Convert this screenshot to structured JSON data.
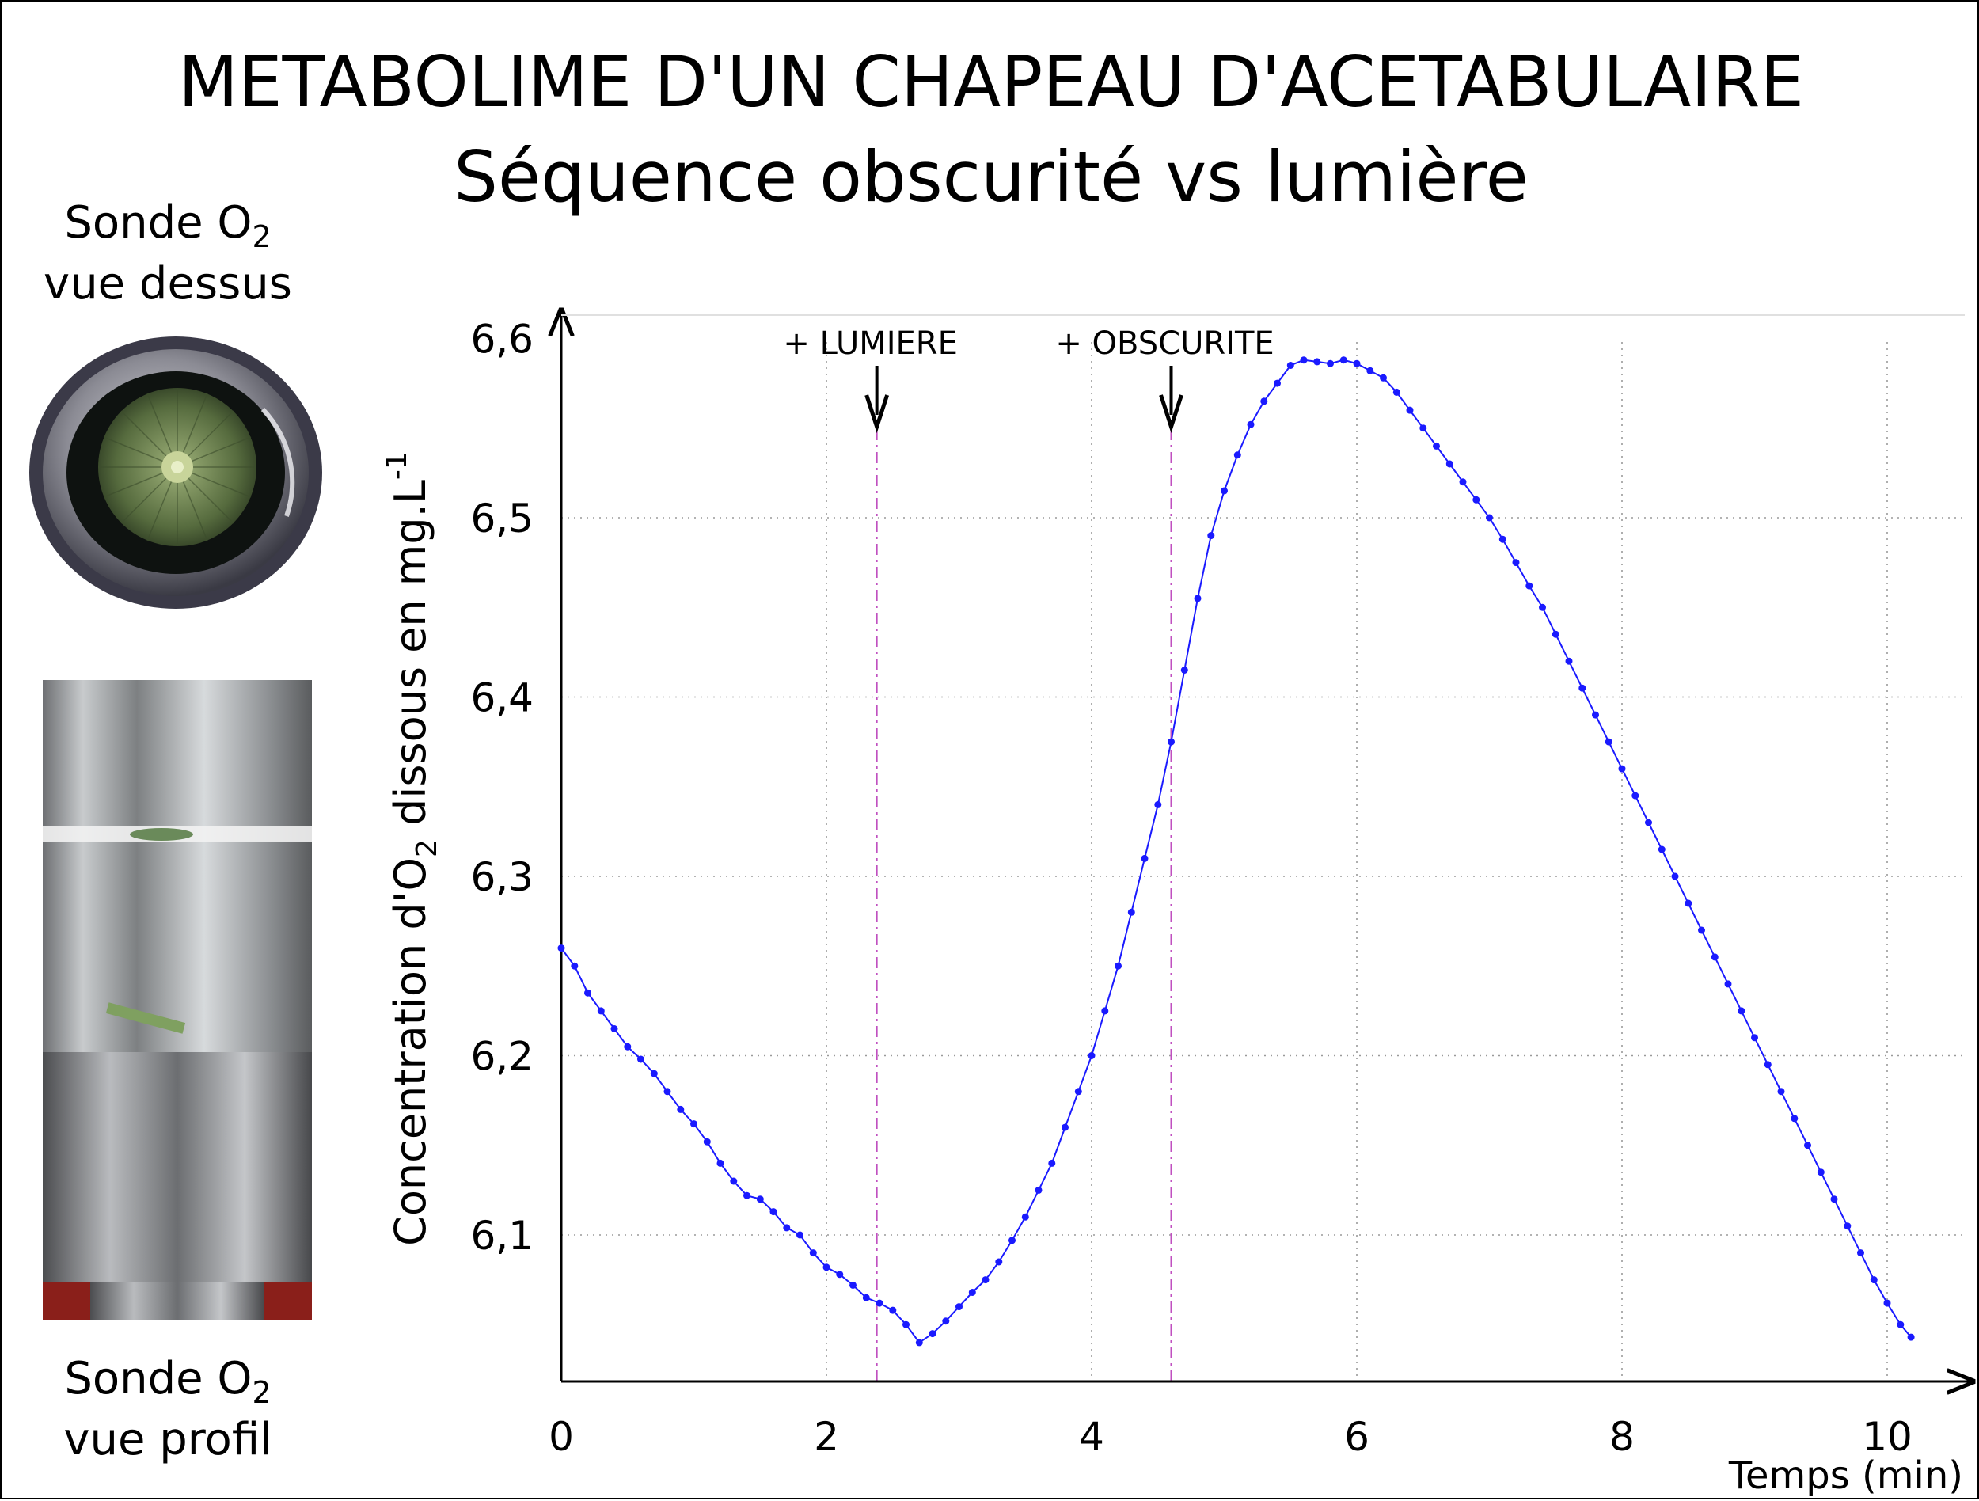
{
  "header": {
    "title_line1": "METABOLIME D'UN CHAPEAU D'ACETABULAIRE",
    "title_line2": "Séquence obscurité vs lumière"
  },
  "sidebar": {
    "top_label": {
      "main": "Sonde O",
      "sub": "2",
      "line2": "vue dessus"
    },
    "bottom_label": {
      "main": "Sonde O",
      "sub": "2",
      "line2": "vue profil"
    }
  },
  "chart_data": {
    "type": "line",
    "xlabel": "Temps (min)",
    "ylabel_main": "Concentration d'O",
    "ylabel_sub": "2",
    "ylabel_tail": " dissous en mg.L",
    "ylabel_sup": "-1",
    "xlim": [
      0,
      10.5
    ],
    "ylim": [
      6.02,
      6.6
    ],
    "x_ticks": [
      0,
      2,
      4,
      6,
      8,
      10
    ],
    "x_tick_labels": [
      "0",
      "2",
      "4",
      "6",
      "8",
      "10"
    ],
    "y_ticks": [
      6.1,
      6.2,
      6.3,
      6.4,
      6.5,
      6.6
    ],
    "y_tick_labels": [
      "6,1",
      "6,2",
      "6,3",
      "6,4",
      "6,5",
      "6,6"
    ],
    "grid": "dotted",
    "line_color": "#1a1aff",
    "event_color": "#c050c0",
    "annotations": [
      {
        "text": "+ LUMIERE",
        "x": 2.38
      },
      {
        "text": "+ OBSCURITE",
        "x": 4.6
      }
    ],
    "series": [
      {
        "x": [
          0.0,
          0.1,
          0.2,
          0.3,
          0.4,
          0.5,
          0.6,
          0.7,
          0.8,
          0.9,
          1.0,
          1.1,
          1.2,
          1.3,
          1.4,
          1.5,
          1.6,
          1.7,
          1.8,
          1.9,
          2.0,
          2.1,
          2.2,
          2.3,
          2.4,
          2.5,
          2.6,
          2.7,
          2.8,
          2.9,
          3.0,
          3.1,
          3.2,
          3.3,
          3.4,
          3.5,
          3.6,
          3.7,
          3.8,
          3.9,
          4.0,
          4.1,
          4.2,
          4.3,
          4.4,
          4.5,
          4.6,
          4.7,
          4.8,
          4.9,
          5.0,
          5.1,
          5.2,
          5.3,
          5.4,
          5.5,
          5.6,
          5.7,
          5.8,
          5.9,
          6.0,
          6.1,
          6.2,
          6.3,
          6.4,
          6.5,
          6.6,
          6.7,
          6.8,
          6.9,
          7.0,
          7.1,
          7.2,
          7.3,
          7.4,
          7.5,
          7.6,
          7.7,
          7.8,
          7.9,
          8.0,
          8.1,
          8.2,
          8.3,
          8.4,
          8.5,
          8.6,
          8.7,
          8.8,
          8.9,
          9.0,
          9.1,
          9.2,
          9.3,
          9.4,
          9.5,
          9.6,
          9.7,
          9.8,
          9.9,
          10.0,
          10.1,
          10.18
        ],
        "y": [
          6.26,
          6.25,
          6.235,
          6.225,
          6.215,
          6.205,
          6.198,
          6.19,
          6.18,
          6.17,
          6.162,
          6.152,
          6.14,
          6.13,
          6.122,
          6.12,
          6.113,
          6.104,
          6.1,
          6.09,
          6.082,
          6.078,
          6.072,
          6.065,
          6.062,
          6.058,
          6.05,
          6.04,
          6.045,
          6.052,
          6.06,
          6.068,
          6.075,
          6.085,
          6.097,
          6.11,
          6.125,
          6.14,
          6.16,
          6.18,
          6.2,
          6.225,
          6.25,
          6.28,
          6.31,
          6.34,
          6.375,
          6.415,
          6.455,
          6.49,
          6.515,
          6.535,
          6.552,
          6.565,
          6.575,
          6.585,
          6.588,
          6.587,
          6.586,
          6.588,
          6.586,
          6.582,
          6.578,
          6.57,
          6.56,
          6.55,
          6.54,
          6.53,
          6.52,
          6.51,
          6.5,
          6.488,
          6.475,
          6.462,
          6.45,
          6.435,
          6.42,
          6.405,
          6.39,
          6.375,
          6.36,
          6.345,
          6.33,
          6.315,
          6.3,
          6.285,
          6.27,
          6.255,
          6.24,
          6.225,
          6.21,
          6.195,
          6.18,
          6.165,
          6.15,
          6.135,
          6.12,
          6.105,
          6.09,
          6.075,
          6.062,
          6.05,
          6.043
        ]
      }
    ]
  }
}
